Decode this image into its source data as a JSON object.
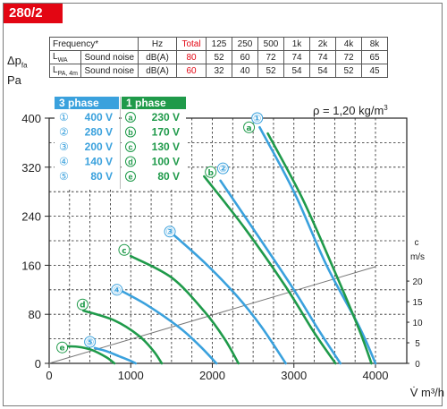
{
  "model": "280/2",
  "table": {
    "header": [
      "Frequency*",
      "Hz",
      "Total",
      "125",
      "250",
      "500",
      "1k",
      "2k",
      "4k",
      "8k"
    ],
    "rows": [
      {
        "sym": "L",
        "sub": "WA",
        "name": "Sound noise",
        "unit": "dB(A)",
        "total": "80",
        "values": [
          "52",
          "60",
          "72",
          "74",
          "74",
          "72",
          "65"
        ]
      },
      {
        "sym": "L",
        "sub": "PA, 4m",
        "name": "Sound noise",
        "unit": "dB(A)",
        "total": "60",
        "values": [
          "32",
          "40",
          "52",
          "54",
          "54",
          "52",
          "45"
        ]
      }
    ]
  },
  "colors": {
    "three_phase": "#3aa1dd",
    "one_phase": "#1f9a4a",
    "velocity": "#777777",
    "accent": "#e30613"
  },
  "chart_data": {
    "type": "line",
    "y_label": {
      "sym": "Δp",
      "sub": "fa",
      "unit": "Pa"
    },
    "x_label": {
      "sym": "V̇",
      "unit": "m³/h"
    },
    "density_note": "ρ = 1,20 kg/m",
    "density_sup": "3",
    "xlim": [
      0,
      4000
    ],
    "ylim": [
      0,
      400
    ],
    "x_ticks": [
      "0",
      "1000",
      "2000",
      "3000",
      "4000"
    ],
    "y_ticks": [
      "0",
      "80",
      "160",
      "240",
      "320",
      "400"
    ],
    "velocity_axis": {
      "label": "c",
      "unit": "m/s",
      "ticks": [
        "0",
        "5",
        "10",
        "15",
        "20"
      ],
      "range": [
        0,
        23.5
      ]
    },
    "legend": {
      "three_phase": {
        "title": "3 phase",
        "items": [
          {
            "mark": "①",
            "volt": "400 V"
          },
          {
            "mark": "②",
            "volt": "280 V"
          },
          {
            "mark": "③",
            "volt": "200 V"
          },
          {
            "mark": "④",
            "volt": "140 V"
          },
          {
            "mark": "⑤",
            "volt": "80 V"
          }
        ]
      },
      "one_phase": {
        "title": "1 phase",
        "items": [
          {
            "mark": "a",
            "volt": "230 V"
          },
          {
            "mark": "b",
            "volt": "170 V"
          },
          {
            "mark": "c",
            "volt": "130 V"
          },
          {
            "mark": "d",
            "volt": "100 V"
          },
          {
            "mark": "e",
            "volt": "80 V"
          }
        ]
      }
    },
    "series": [
      {
        "name": "①",
        "phase": "3",
        "points": [
          [
            2580,
            385
          ],
          [
            3000,
            280
          ],
          [
            3400,
            160
          ],
          [
            3800,
            60
          ],
          [
            4000,
            0
          ]
        ]
      },
      {
        "name": "②",
        "phase": "3",
        "points": [
          [
            2100,
            298
          ],
          [
            2600,
            200
          ],
          [
            3000,
            120
          ],
          [
            3300,
            55
          ],
          [
            3570,
            0
          ]
        ]
      },
      {
        "name": "③",
        "phase": "3",
        "points": [
          [
            1480,
            215
          ],
          [
            1900,
            165
          ],
          [
            2300,
            110
          ],
          [
            2600,
            60
          ],
          [
            2900,
            0
          ]
        ]
      },
      {
        "name": "④",
        "phase": "3",
        "points": [
          [
            860,
            120
          ],
          [
            1200,
            95
          ],
          [
            1600,
            58
          ],
          [
            1850,
            28
          ],
          [
            2050,
            0
          ]
        ]
      },
      {
        "name": "⑤",
        "phase": "3",
        "points": [
          [
            560,
            25
          ],
          [
            700,
            20
          ],
          [
            850,
            12
          ],
          [
            1000,
            4
          ],
          [
            1060,
            0
          ]
        ]
      },
      {
        "name": "a",
        "phase": "1",
        "points": [
          [
            2680,
            375
          ],
          [
            3100,
            270
          ],
          [
            3500,
            150
          ],
          [
            3800,
            55
          ],
          [
            3950,
            0
          ]
        ]
      },
      {
        "name": "b",
        "phase": "1",
        "points": [
          [
            1900,
            305
          ],
          [
            2400,
            220
          ],
          [
            2900,
            125
          ],
          [
            3250,
            50
          ],
          [
            3510,
            0
          ]
        ]
      },
      {
        "name": "c",
        "phase": "1",
        "points": [
          [
            1000,
            175
          ],
          [
            1500,
            140
          ],
          [
            1900,
            85
          ],
          [
            2150,
            40
          ],
          [
            2320,
            0
          ]
        ]
      },
      {
        "name": "d",
        "phase": "1",
        "points": [
          [
            420,
            86
          ],
          [
            800,
            70
          ],
          [
            1100,
            45
          ],
          [
            1280,
            20
          ],
          [
            1380,
            0
          ]
        ]
      },
      {
        "name": "e",
        "phase": "1",
        "points": [
          [
            170,
            28
          ],
          [
            350,
            27
          ],
          [
            520,
            22
          ],
          [
            700,
            10
          ],
          [
            800,
            0
          ]
        ]
      }
    ],
    "series_labels": [
      {
        "name": "①",
        "at": [
          2550,
          400
        ]
      },
      {
        "name": "a",
        "at": [
          2450,
          385
        ]
      },
      {
        "name": "②",
        "at": [
          2130,
          318
        ]
      },
      {
        "name": "b",
        "at": [
          1980,
          312
        ]
      },
      {
        "name": "③",
        "at": [
          1480,
          215
        ]
      },
      {
        "name": "c",
        "at": [
          920,
          185
        ]
      },
      {
        "name": "④",
        "at": [
          830,
          120
        ]
      },
      {
        "name": "d",
        "at": [
          410,
          96
        ]
      },
      {
        "name": "⑤",
        "at": [
          500,
          35
        ]
      },
      {
        "name": "e",
        "at": [
          160,
          26
        ]
      }
    ],
    "velocity_line": [
      [
        0,
        0
      ],
      [
        4000,
        23.5
      ]
    ]
  }
}
